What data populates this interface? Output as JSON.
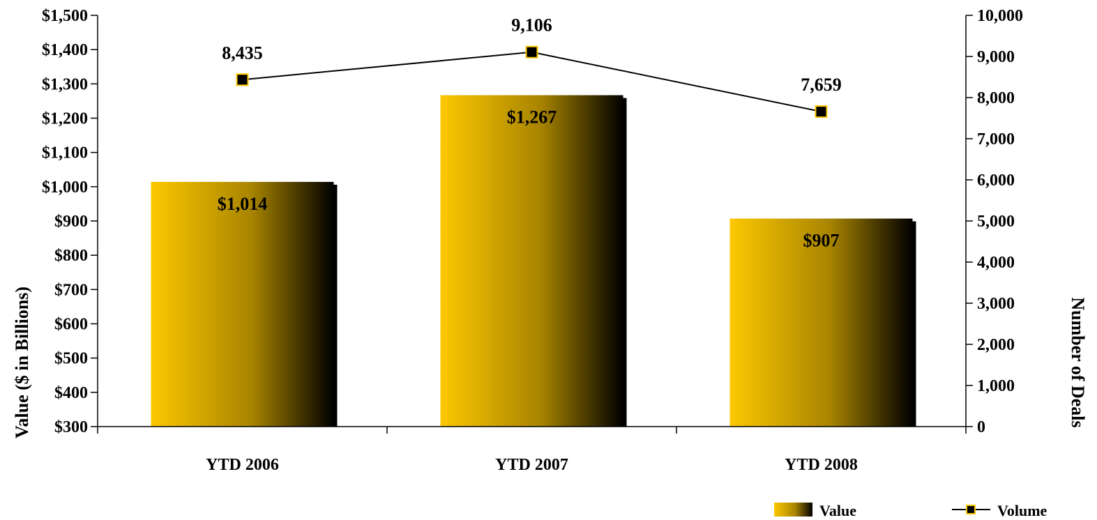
{
  "chart_data": {
    "type": "bar",
    "categories": [
      "YTD 2006",
      "YTD 2007",
      "YTD 2008"
    ],
    "series": [
      {
        "name": "Value",
        "type": "bar",
        "axis": "left",
        "values": [
          1014,
          1267,
          907
        ],
        "labels": [
          "$1,014",
          "$1,267",
          "$907"
        ],
        "gradient": [
          "#fcc800",
          "#000000"
        ]
      },
      {
        "name": "Volume",
        "type": "line",
        "axis": "right",
        "values": [
          8435,
          9106,
          7659
        ],
        "labels": [
          "8,435",
          "9,106",
          "7,659"
        ],
        "marker_fill": "#000000",
        "marker_stroke": "#fcc800",
        "line_color": "#000000"
      }
    ],
    "ylabel": "Value ($ in Billions)",
    "y2label": "Number of Deals",
    "ylim": [
      300,
      1500
    ],
    "y2lim": [
      0,
      10000
    ],
    "yticks": [
      "$300",
      "$400",
      "$500",
      "$600",
      "$700",
      "$800",
      "$900",
      "$1,000",
      "$1,100",
      "$1,200",
      "$1,300",
      "$1,400",
      "$1,500"
    ],
    "y2ticks": [
      "0",
      "1,000",
      "2,000",
      "3,000",
      "4,000",
      "5,000",
      "6,000",
      "7,000",
      "8,000",
      "9,000",
      "10,000"
    ],
    "grid": false,
    "legend": "bottom-right",
    "legend_labels": [
      "Value",
      "Volume"
    ]
  }
}
